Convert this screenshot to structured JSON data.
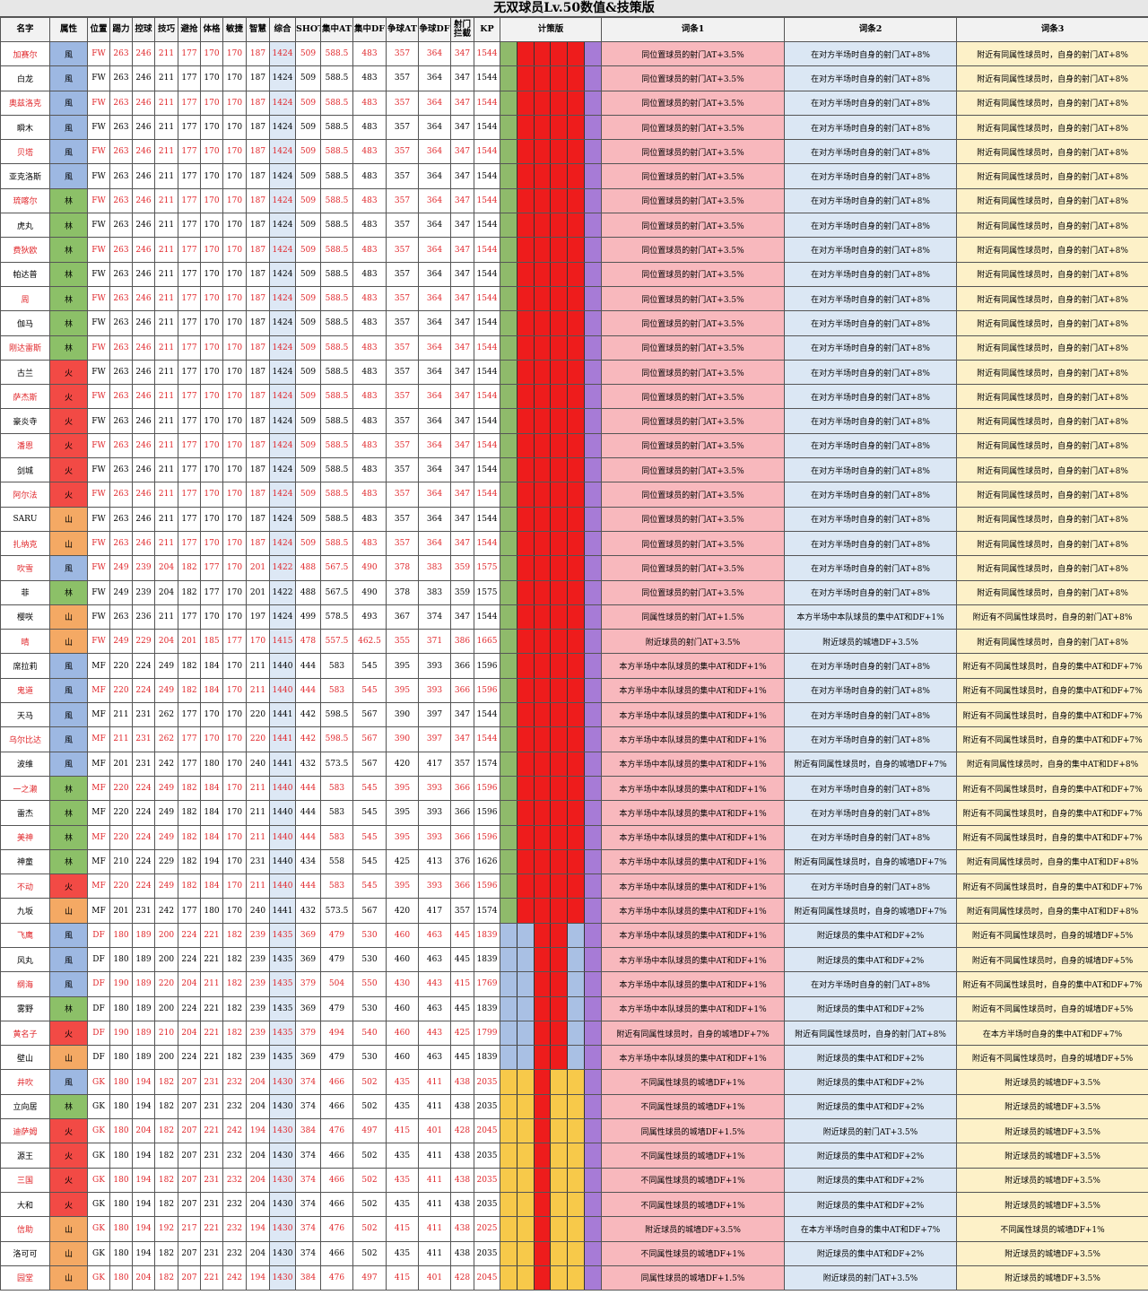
{
  "title": "无双球员Lv.50数值&技策版",
  "table": {
    "header": [
      "名字",
      "属性",
      "位置",
      "踢力",
      "控球",
      "技巧",
      "避抢",
      "体格",
      "敏捷",
      "智慧",
      "综合",
      "SHOT",
      "集中AT",
      "集中DF",
      "争球AT",
      "争球DF",
      "射门拦截",
      "KP",
      "计策版",
      "词条1",
      "词条2",
      "词条3"
    ],
    "rows": [
      [
        "加赛尔",
        "風",
        "FW",
        263,
        246,
        211,
        177,
        170,
        170,
        187,
        1424,
        509,
        588.5,
        483,
        357,
        364,
        347,
        1544,
        "同位置球员的射门AT+3.5%",
        "在对方半场时自身的射门AT+8%",
        "附近有同属性球员时，自身的射门AT+8%"
      ],
      [
        "白龙",
        "風",
        "FW",
        263,
        246,
        211,
        177,
        170,
        170,
        187,
        1424,
        509,
        588.5,
        483,
        357,
        364,
        347,
        1544,
        "同位置球员的射门AT+3.5%",
        "在对方半场时自身的射门AT+8%",
        "附近有同属性球员时，自身的射门AT+8%"
      ],
      [
        "奥兹洛克",
        "風",
        "FW",
        263,
        246,
        211,
        177,
        170,
        170,
        187,
        1424,
        509,
        588.5,
        483,
        357,
        364,
        347,
        1544,
        "同位置球员的射门AT+3.5%",
        "在对方半场时自身的射门AT+8%",
        "附近有同属性球员时，自身的射门AT+8%"
      ],
      [
        "瞬木",
        "風",
        "FW",
        263,
        246,
        211,
        177,
        170,
        170,
        187,
        1424,
        509,
        588.5,
        483,
        357,
        364,
        347,
        1544,
        "同位置球员的射门AT+3.5%",
        "在对方半场时自身的射门AT+8%",
        "附近有同属性球员时，自身的射门AT+8%"
      ],
      [
        "贝塔",
        "風",
        "FW",
        263,
        246,
        211,
        177,
        170,
        170,
        187,
        1424,
        509,
        588.5,
        483,
        357,
        364,
        347,
        1544,
        "同位置球员的射门AT+3.5%",
        "在对方半场时自身的射门AT+8%",
        "附近有同属性球员时，自身的射门AT+8%"
      ],
      [
        "亚克洛斯",
        "風",
        "FW",
        263,
        246,
        211,
        177,
        170,
        170,
        187,
        1424,
        509,
        588.5,
        483,
        357,
        364,
        347,
        1544,
        "同位置球员的射门AT+3.5%",
        "在对方半场时自身的射门AT+8%",
        "附近有同属性球员时，自身的射门AT+8%"
      ],
      [
        "琉喀尔",
        "林",
        "FW",
        263,
        246,
        211,
        177,
        170,
        170,
        187,
        1424,
        509,
        588.5,
        483,
        357,
        364,
        347,
        1544,
        "同位置球员的射门AT+3.5%",
        "在对方半场时自身的射门AT+8%",
        "附近有同属性球员时，自身的射门AT+8%"
      ],
      [
        "虎丸",
        "林",
        "FW",
        263,
        246,
        211,
        177,
        170,
        170,
        187,
        1424,
        509,
        588.5,
        483,
        357,
        364,
        347,
        1544,
        "同位置球员的射门AT+3.5%",
        "在对方半场时自身的射门AT+8%",
        "附近有同属性球员时，自身的射门AT+8%"
      ],
      [
        "费狄欧",
        "林",
        "FW",
        263,
        246,
        211,
        177,
        170,
        170,
        187,
        1424,
        509,
        588.5,
        483,
        357,
        364,
        347,
        1544,
        "同位置球员的射门AT+3.5%",
        "在对方半场时自身的射门AT+8%",
        "附近有同属性球员时，自身的射门AT+8%"
      ],
      [
        "帕达普",
        "林",
        "FW",
        263,
        246,
        211,
        177,
        170,
        170,
        187,
        1424,
        509,
        588.5,
        483,
        357,
        364,
        347,
        1544,
        "同位置球员的射门AT+3.5%",
        "在对方半场时自身的射门AT+8%",
        "附近有同属性球员时，自身的射门AT+8%"
      ],
      [
        "周",
        "林",
        "FW",
        263,
        246,
        211,
        177,
        170,
        170,
        187,
        1424,
        509,
        588.5,
        483,
        357,
        364,
        347,
        1544,
        "同位置球员的射门AT+3.5%",
        "在对方半场时自身的射门AT+8%",
        "附近有同属性球员时，自身的射门AT+8%"
      ],
      [
        "伽马",
        "林",
        "FW",
        263,
        246,
        211,
        177,
        170,
        170,
        187,
        1424,
        509,
        588.5,
        483,
        357,
        364,
        347,
        1544,
        "同位置球员的射门AT+3.5%",
        "在对方半场时自身的射门AT+8%",
        "附近有同属性球员时，自身的射门AT+8%"
      ],
      [
        "刚达雷斯",
        "林",
        "FW",
        263,
        246,
        211,
        177,
        170,
        170,
        187,
        1424,
        509,
        588.5,
        483,
        357,
        364,
        347,
        1544,
        "同位置球员的射门AT+3.5%",
        "在对方半场时自身的射门AT+8%",
        "附近有同属性球员时，自身的射门AT+8%"
      ],
      [
        "古兰",
        "火",
        "FW",
        263,
        246,
        211,
        177,
        170,
        170,
        187,
        1424,
        509,
        588.5,
        483,
        357,
        364,
        347,
        1544,
        "同位置球员的射门AT+3.5%",
        "在对方半场时自身的射门AT+8%",
        "附近有同属性球员时，自身的射门AT+8%"
      ],
      [
        "萨杰斯",
        "火",
        "FW",
        263,
        246,
        211,
        177,
        170,
        170,
        187,
        1424,
        509,
        588.5,
        483,
        357,
        364,
        347,
        1544,
        "同位置球员的射门AT+3.5%",
        "在对方半场时自身的射门AT+8%",
        "附近有同属性球员时，自身的射门AT+8%"
      ],
      [
        "豪炎寺",
        "火",
        "FW",
        263,
        246,
        211,
        177,
        170,
        170,
        187,
        1424,
        509,
        588.5,
        483,
        357,
        364,
        347,
        1544,
        "同位置球员的射门AT+3.5%",
        "在对方半场时自身的射门AT+8%",
        "附近有同属性球员时，自身的射门AT+8%"
      ],
      [
        "潘恩",
        "火",
        "FW",
        263,
        246,
        211,
        177,
        170,
        170,
        187,
        1424,
        509,
        588.5,
        483,
        357,
        364,
        347,
        1544,
        "同位置球员的射门AT+3.5%",
        "在对方半场时自身的射门AT+8%",
        "附近有同属性球员时，自身的射门AT+8%"
      ],
      [
        "剑城",
        "火",
        "FW",
        263,
        246,
        211,
        177,
        170,
        170,
        187,
        1424,
        509,
        588.5,
        483,
        357,
        364,
        347,
        1544,
        "同位置球员的射门AT+3.5%",
        "在对方半场时自身的射门AT+8%",
        "附近有同属性球员时，自身的射门AT+8%"
      ],
      [
        "阿尔法",
        "火",
        "FW",
        263,
        246,
        211,
        177,
        170,
        170,
        187,
        1424,
        509,
        588.5,
        483,
        357,
        364,
        347,
        1544,
        "同位置球员的射门AT+3.5%",
        "在对方半场时自身的射门AT+8%",
        "附近有同属性球员时，自身的射门AT+8%"
      ],
      [
        "SARU",
        "山",
        "FW",
        263,
        246,
        211,
        177,
        170,
        170,
        187,
        1424,
        509,
        588.5,
        483,
        357,
        364,
        347,
        1544,
        "同位置球员的射门AT+3.5%",
        "在对方半场时自身的射门AT+8%",
        "附近有同属性球员时，自身的射门AT+8%"
      ],
      [
        "扎纳克",
        "山",
        "FW",
        263,
        246,
        211,
        177,
        170,
        170,
        187,
        1424,
        509,
        588.5,
        483,
        357,
        364,
        347,
        1544,
        "同位置球员的射门AT+3.5%",
        "在对方半场时自身的射门AT+8%",
        "附近有同属性球员时，自身的射门AT+8%"
      ],
      [
        "吹雪",
        "風",
        "FW",
        249,
        239,
        204,
        182,
        177,
        170,
        201,
        1422,
        488,
        567.5,
        490,
        378,
        383,
        359,
        1575,
        "同位置球员的射门AT+3.5%",
        "在对方半场时自身的射门AT+8%",
        "附近有同属性球员时，自身的射门AT+8%"
      ],
      [
        "菲",
        "林",
        "FW",
        249,
        239,
        204,
        182,
        177,
        170,
        201,
        1422,
        488,
        567.5,
        490,
        378,
        383,
        359,
        1575,
        "同位置球员的射门AT+3.5%",
        "在对方半场时自身的射门AT+8%",
        "附近有同属性球员时，自身的射门AT+8%"
      ],
      [
        "樱咲",
        "山",
        "FW",
        263,
        236,
        211,
        177,
        170,
        170,
        197,
        1424,
        499,
        578.5,
        493,
        367,
        374,
        347,
        1544,
        "同属性球员的射门AT+1.5%",
        "本方半场中本队球员的集中AT和DF+1%",
        "附近有不同属性球员时，自身的射门AT+8%"
      ],
      [
        "晴",
        "山",
        "FW",
        249,
        229,
        204,
        201,
        185,
        177,
        170,
        1415,
        478,
        557.5,
        462.5,
        355,
        371,
        386,
        1665,
        "附近球员的射门AT+3.5%",
        "附近球员的城墙DF+3.5%",
        "附近有同属性球员时，自身的射门AT+8%"
      ],
      [
        "席拉莉",
        "風",
        "MF",
        220,
        224,
        249,
        182,
        184,
        170,
        211,
        1440,
        444,
        583,
        545,
        395,
        393,
        366,
        1596,
        "本方半场中本队球员的集中AT和DF+1%",
        "在对方半场时自身的射门AT+8%",
        "附近有不同属性球员时，自身的集中AT和DF+7%"
      ],
      [
        "鬼道",
        "風",
        "MF",
        220,
        224,
        249,
        182,
        184,
        170,
        211,
        1440,
        444,
        583,
        545,
        395,
        393,
        366,
        1596,
        "本方半场中本队球员的集中AT和DF+1%",
        "在对方半场时自身的射门AT+8%",
        "附近有不同属性球员时，自身的集中AT和DF+7%"
      ],
      [
        "天马",
        "風",
        "MF",
        211,
        231,
        262,
        177,
        170,
        170,
        220,
        1441,
        442,
        598.5,
        567,
        390,
        397,
        347,
        1544,
        "本方半场中本队球员的集中AT和DF+1%",
        "在对方半场时自身的射门AT+8%",
        "附近有不同属性球员时，自身的集中AT和DF+7%"
      ],
      [
        "乌尔比达",
        "風",
        "MF",
        211,
        231,
        262,
        177,
        170,
        170,
        220,
        1441,
        442,
        598.5,
        567,
        390,
        397,
        347,
        1544,
        "本方半场中本队球员的集中AT和DF+1%",
        "在对方半场时自身的射门AT+8%",
        "附近有不同属性球员时，自身的集中AT和DF+7%"
      ],
      [
        "波维",
        "風",
        "MF",
        201,
        231,
        242,
        177,
        180,
        170,
        240,
        1441,
        432,
        573.5,
        567,
        420,
        417,
        357,
        1574,
        "本方半场中本队球员的集中AT和DF+1%",
        "附近有同属性球员时，自身的城墙DF+7%",
        "附近有同属性球员时，自身的集中AT和DF+8%"
      ],
      [
        "一之濑",
        "林",
        "MF",
        220,
        224,
        249,
        182,
        184,
        170,
        211,
        1440,
        444,
        583,
        545,
        395,
        393,
        366,
        1596,
        "本方半场中本队球员的集中AT和DF+1%",
        "在对方半场时自身的射门AT+8%",
        "附近有不同属性球员时，自身的集中AT和DF+7%"
      ],
      [
        "雷杰",
        "林",
        "MF",
        220,
        224,
        249,
        182,
        184,
        170,
        211,
        1440,
        444,
        583,
        545,
        395,
        393,
        366,
        1596,
        "本方半场中本队球员的集中AT和DF+1%",
        "在对方半场时自身的射门AT+8%",
        "附近有不同属性球员时，自身的集中AT和DF+7%"
      ],
      [
        "美神",
        "林",
        "MF",
        220,
        224,
        249,
        182,
        184,
        170,
        211,
        1440,
        444,
        583,
        545,
        395,
        393,
        366,
        1596,
        "本方半场中本队球员的集中AT和DF+1%",
        "在对方半场时自身的射门AT+8%",
        "附近有不同属性球员时，自身的集中AT和DF+7%"
      ],
      [
        "神童",
        "林",
        "MF",
        210,
        224,
        229,
        182,
        194,
        170,
        231,
        1440,
        434,
        558,
        545,
        425,
        413,
        376,
        1626,
        "本方半场中本队球员的集中AT和DF+1%",
        "附近有同属性球员时，自身的城墙DF+7%",
        "附近有同属性球员时，自身的集中AT和DF+8%"
      ],
      [
        "不动",
        "火",
        "MF",
        220,
        224,
        249,
        182,
        184,
        170,
        211,
        1440,
        444,
        583,
        545,
        395,
        393,
        366,
        1596,
        "本方半场中本队球员的集中AT和DF+1%",
        "在对方半场时自身的射门AT+8%",
        "附近有不同属性球员时，自身的集中AT和DF+7%"
      ],
      [
        "九坂",
        "山",
        "MF",
        201,
        231,
        242,
        177,
        180,
        170,
        240,
        1441,
        432,
        573.5,
        567,
        420,
        417,
        357,
        1574,
        "本方半场中本队球员的集中AT和DF+1%",
        "附近有同属性球员时，自身的城墙DF+7%",
        "附近有同属性球员时，自身的集中AT和DF+8%"
      ],
      [
        "飞鹰",
        "風",
        "DF",
        180,
        189,
        200,
        224,
        221,
        182,
        239,
        1435,
        369,
        479,
        530,
        460,
        463,
        445,
        1839,
        "本方半场中本队球员的集中AT和DF+1%",
        "附近球员的集中AT和DF+2%",
        "附近有不同属性球员时，自身的城墙DF+5%"
      ],
      [
        "风丸",
        "風",
        "DF",
        180,
        189,
        200,
        224,
        221,
        182,
        239,
        1435,
        369,
        479,
        530,
        460,
        463,
        445,
        1839,
        "本方半场中本队球员的集中AT和DF+1%",
        "附近球员的集中AT和DF+2%",
        "附近有不同属性球员时，自身的城墙DF+5%"
      ],
      [
        "纲海",
        "風",
        "DF",
        190,
        189,
        220,
        204,
        211,
        182,
        239,
        1435,
        379,
        504,
        550,
        430,
        443,
        415,
        1769,
        "本方半场中本队球员的集中AT和DF+1%",
        "在对方半场时自身的射门AT+8%",
        "附近有不同属性球员时，自身的集中AT和DF+7%"
      ],
      [
        "雾野",
        "林",
        "DF",
        180,
        189,
        200,
        224,
        221,
        182,
        239,
        1435,
        369,
        479,
        530,
        460,
        463,
        445,
        1839,
        "本方半场中本队球员的集中AT和DF+1%",
        "附近球员的集中AT和DF+2%",
        "附近有不同属性球员时，自身的城墙DF+5%"
      ],
      [
        "黄名子",
        "火",
        "DF",
        190,
        189,
        210,
        204,
        221,
        182,
        239,
        1435,
        379,
        494,
        540,
        460,
        443,
        425,
        1799,
        "附近有同属性球员时，自身的城墙DF+7%",
        "附近有同属性球员时，自身的射门AT+8%",
        "在本方半场时自身的集中AT和DF+7%"
      ],
      [
        "壁山",
        "山",
        "DF",
        180,
        189,
        200,
        224,
        221,
        182,
        239,
        1435,
        369,
        479,
        530,
        460,
        463,
        445,
        1839,
        "本方半场中本队球员的集中AT和DF+1%",
        "附近球员的集中AT和DF+2%",
        "附近有不同属性球员时，自身的城墙DF+5%"
      ],
      [
        "井吹",
        "風",
        "GK",
        180,
        194,
        182,
        207,
        231,
        232,
        204,
        1430,
        374,
        466,
        502,
        435,
        411,
        438,
        2035,
        "不同属性球员的城墙DF+1%",
        "附近球员的集中AT和DF+2%",
        "附近球员的城墙DF+3.5%"
      ],
      [
        "立向居",
        "林",
        "GK",
        180,
        194,
        182,
        207,
        231,
        232,
        204,
        1430,
        374,
        466,
        502,
        435,
        411,
        438,
        2035,
        "不同属性球员的城墙DF+1%",
        "附近球员的集中AT和DF+2%",
        "附近球员的城墙DF+3.5%"
      ],
      [
        "迪萨姆",
        "火",
        "GK",
        180,
        204,
        182,
        207,
        221,
        242,
        194,
        1430,
        384,
        476,
        497,
        415,
        401,
        428,
        2045,
        "同属性球员的城墙DF+1.5%",
        "附近球员的射门AT+3.5%",
        "附近球员的城墙DF+3.5%"
      ],
      [
        "源王",
        "火",
        "GK",
        180,
        194,
        182,
        207,
        231,
        232,
        204,
        1430,
        374,
        466,
        502,
        435,
        411,
        438,
        2035,
        "不同属性球员的城墙DF+1%",
        "附近球员的集中AT和DF+2%",
        "附近球员的城墙DF+3.5%"
      ],
      [
        "三国",
        "火",
        "GK",
        180,
        194,
        182,
        207,
        231,
        232,
        204,
        1430,
        374,
        466,
        502,
        435,
        411,
        438,
        2035,
        "不同属性球员的城墙DF+1%",
        "附近球员的集中AT和DF+2%",
        "附近球员的城墙DF+3.5%"
      ],
      [
        "大和",
        "火",
        "GK",
        180,
        194,
        182,
        207,
        231,
        232,
        204,
        1430,
        374,
        466,
        502,
        435,
        411,
        438,
        2035,
        "不同属性球员的城墙DF+1%",
        "附近球员的集中AT和DF+2%",
        "附近球员的城墙DF+3.5%"
      ],
      [
        "信助",
        "山",
        "GK",
        180,
        194,
        192,
        217,
        221,
        232,
        194,
        1430,
        374,
        476,
        502,
        415,
        411,
        438,
        2025,
        "附近球员的城墙DF+3.5%",
        "在本方半场时自身的集中AT和DF+7%",
        "不同属性球员的城墙DF+1%"
      ],
      [
        "洛可可",
        "山",
        "GK",
        180,
        194,
        182,
        207,
        231,
        232,
        204,
        1430,
        374,
        466,
        502,
        435,
        411,
        438,
        2035,
        "不同属性球员的城墙DF+1%",
        "附近球员的集中AT和DF+2%",
        "附近球员的城墙DF+3.5%"
      ],
      [
        "园堂",
        "山",
        "GK",
        180,
        204,
        182,
        207,
        221,
        242,
        194,
        1430,
        384,
        476,
        497,
        415,
        401,
        428,
        2045,
        "同属性球员的城墙DF+1.5%",
        "附近球员的射门AT+3.5%",
        "附近球员的城墙DF+3.5%"
      ]
    ]
  }
}
